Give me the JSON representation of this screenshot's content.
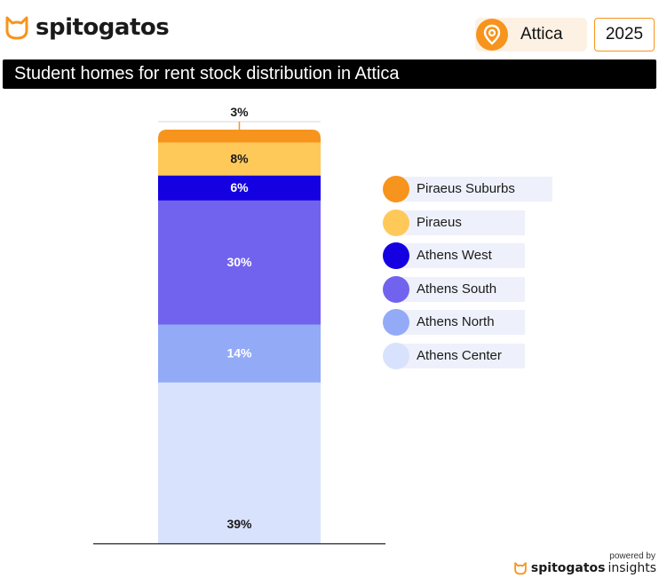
{
  "brand": {
    "name": "spitogatos"
  },
  "filters": {
    "region": "Attica",
    "year": "2025"
  },
  "title": "Student homes for rent stock distribution in Attica",
  "footer": {
    "powered_by": "powered by",
    "brand": "spitogatos",
    "product": "insights"
  },
  "colors": {
    "accent": "#f7941d",
    "piraeus_suburbs": "#f7941d",
    "piraeus": "#ffc95a",
    "athens_west": "#1400e0",
    "athens_south": "#7263ee",
    "athens_north": "#93aaf7",
    "athens_center": "#d9e2fc"
  },
  "chart_data": {
    "type": "bar",
    "stacked": true,
    "unit": "%",
    "total": 100,
    "segments": [
      {
        "name": "Athens Center",
        "value": 39,
        "label": "39%",
        "color": "#d9e2fc"
      },
      {
        "name": "Athens North",
        "value": 14,
        "label": "14%",
        "color": "#93aaf7"
      },
      {
        "name": "Athens South",
        "value": 30,
        "label": "30%",
        "color": "#7263ee"
      },
      {
        "name": "Athens West",
        "value": 6,
        "label": "6%",
        "color": "#1400e0"
      },
      {
        "name": "Piraeus",
        "value": 8,
        "label": "8%",
        "color": "#ffc95a"
      },
      {
        "name": "Piraeus Suburbs",
        "value": 3,
        "label": "3%",
        "color": "#f7941d"
      }
    ],
    "legend": [
      "Piraeus Suburbs",
      "Piraeus",
      "Athens West",
      "Athens South",
      "Athens North",
      "Athens Center"
    ],
    "legend_position": "right"
  }
}
